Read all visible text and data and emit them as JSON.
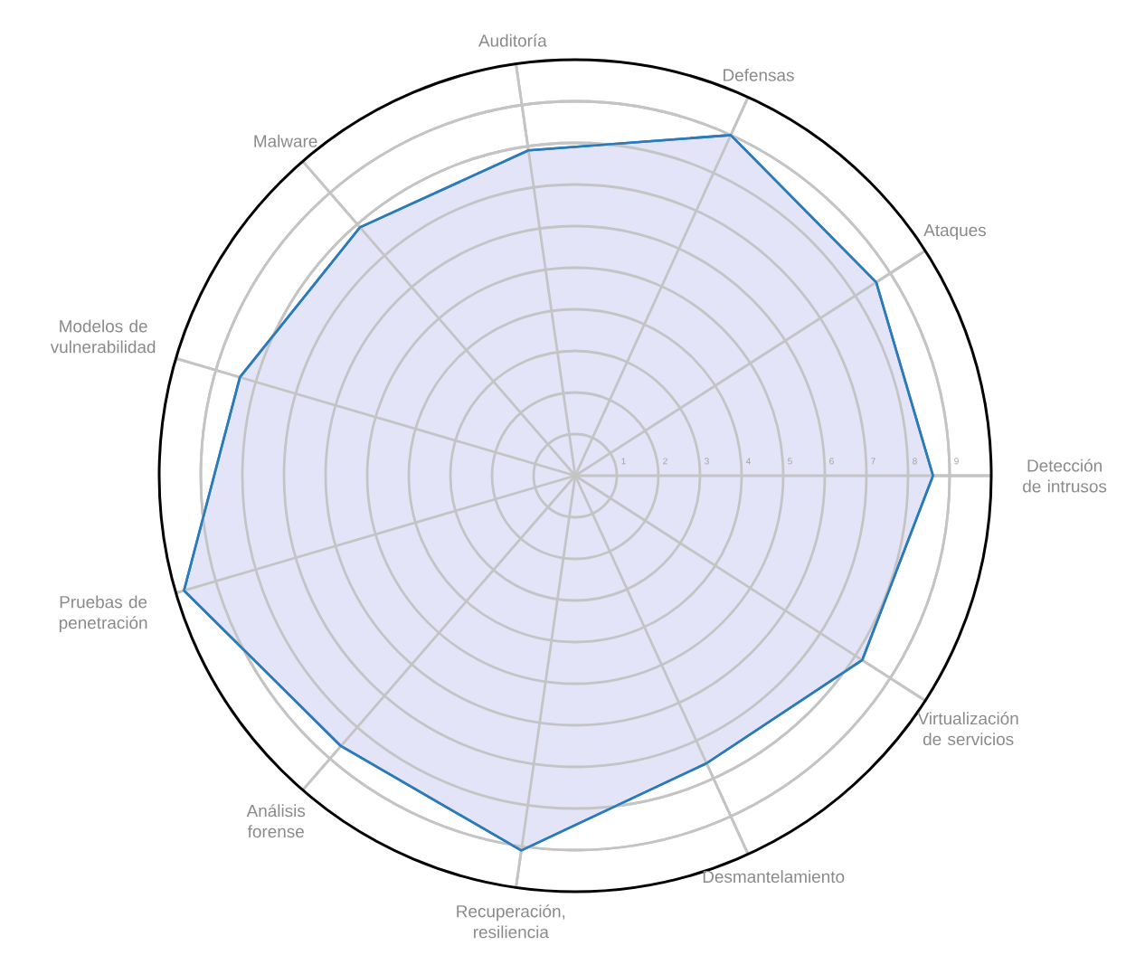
{
  "chart_data": {
    "type": "radar",
    "categories": [
      "Auditoría",
      "Defensas",
      "Ataques",
      "Detección de intrusos",
      "Virtualización de servicios",
      "Desmantelamiento",
      "Recuperación, resiliencia",
      "Análisis forense",
      "Pruebas de penetración",
      "Modelos de vulnerabilidad",
      "Malware"
    ],
    "series": [
      {
        "color": "#2b7bba",
        "values": [
          7.9,
          9.0,
          8.6,
          8.6,
          8.2,
          7.6,
          9.1,
          8.6,
          9.8,
          8.4,
          7.9
        ]
      }
    ],
    "ylim": [
      0,
      10
    ],
    "yticks": [
      1,
      2,
      3,
      4,
      5,
      6,
      7,
      8,
      9
    ],
    "grid": true
  }
}
